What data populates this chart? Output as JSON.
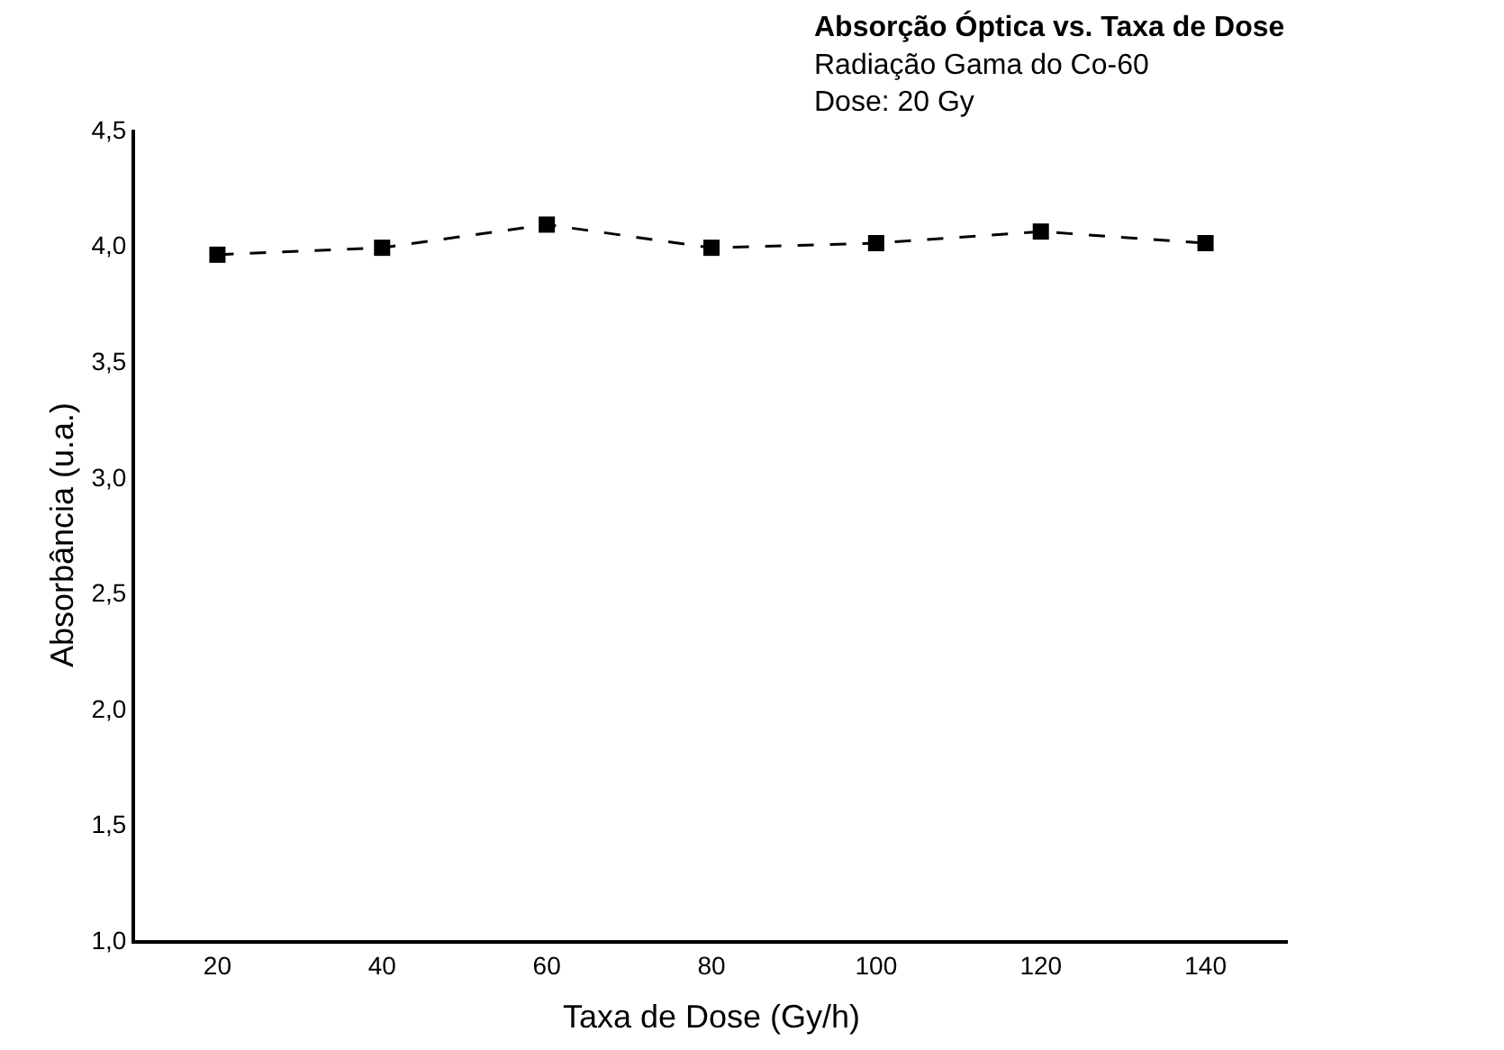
{
  "chart_data": {
    "type": "line",
    "title": "Absorção Óptica vs. Taxa de Dose",
    "subtitle": "Radiação Gama do Co-60",
    "annotations": [
      "Dose: 20 Gy"
    ],
    "xlabel": "Taxa de Dose (Gy/h)",
    "ylabel": "Absorbância (u.a.)",
    "x": [
      20,
      40,
      60,
      80,
      100,
      120,
      140
    ],
    "series": [
      {
        "color": "#000000",
        "values": [
          3.96,
          3.99,
          4.09,
          3.99,
          4.01,
          4.06,
          4.01
        ]
      }
    ],
    "xlim": [
      10,
      150
    ],
    "xticks": [
      20,
      40,
      60,
      80,
      100,
      120,
      140
    ],
    "ylim": [
      1.0,
      4.5
    ],
    "yticks": [
      {
        "value": 1.0,
        "label": "1,0"
      },
      {
        "value": 1.5,
        "label": "1,5"
      },
      {
        "value": 2.0,
        "label": "2,0"
      },
      {
        "value": 2.5,
        "label": "2,5"
      },
      {
        "value": 3.0,
        "label": "3,0"
      },
      {
        "value": 3.5,
        "label": "3,5"
      },
      {
        "value": 4.0,
        "label": "4,0"
      },
      {
        "value": 4.5,
        "label": "4,5"
      }
    ],
    "marker": "square",
    "line_style": "dashed"
  }
}
